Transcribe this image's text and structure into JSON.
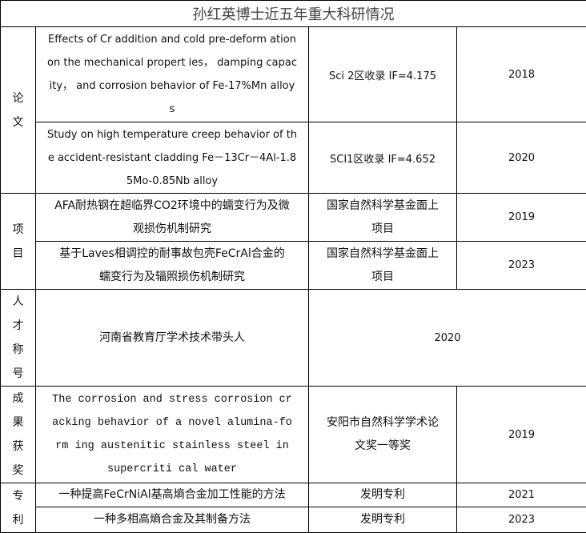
{
  "title": "孙红英博士近五年重大科研情况",
  "sections": {
    "papers": {
      "label": [
        "论",
        "文"
      ],
      "rows": [
        {
          "title_lines": [
            "Effects of Cr addition and cold pre-deform ation",
            "on the mechanical propert ies，  damping capac",
            "ity，  and corrosion behavior of Fe-17%Mn alloy",
            "s"
          ],
          "level": "Sci 2区收录  IF=4.175",
          "year": "2018"
        },
        {
          "title_lines": [
            "Study on high temperature creep behavior of th",
            "e accident-resistant cladding Fe－13Cr－4Al-1.8",
            "5Mo-0.85Nb alloy"
          ],
          "level": "SCI1区收录  IF=4.652",
          "year": "2020"
        }
      ]
    },
    "projects": {
      "label": [
        "项",
        "目"
      ],
      "rows": [
        {
          "title_lines": [
            "AFA耐热钢在超临界CO2环境中的蠕变行为及微",
            "观损伤机制研究"
          ],
          "level_lines": [
            "国家自然科学基金面上",
            "项目"
          ],
          "year": "2019"
        },
        {
          "title_lines": [
            "基于Laves相调控的耐事故包壳FeCrAl合金的",
            "蠕变行为及辐照损伤机制研究"
          ],
          "level_lines": [
            "国家自然科学基金面上",
            "项目"
          ],
          "year": "2023"
        }
      ]
    },
    "talent": {
      "label": [
        "人",
        "才",
        "称",
        "号"
      ],
      "title": "河南省教育厅学术技术带头人",
      "year": "2020"
    },
    "awards": {
      "label": [
        "成",
        "果",
        "获",
        "奖"
      ],
      "title_lines": [
        "The corrosion and stress corrosion cr",
        "acking behavior of a novel alumina-fo",
        "rm ing austenitic stainless steel in",
        "supercriti cal water"
      ],
      "level_lines": [
        "安阳市自然科学学术论",
        "文奖一等奖"
      ],
      "year": "2019"
    },
    "patents": {
      "label": [
        "专",
        "利"
      ],
      "rows": [
        {
          "title": "一种提高FeCrNiAl基高熵合金加工性能的方法",
          "type": "发明专利",
          "year": "2021"
        },
        {
          "title": "一种多相高熵合金及其制备方法",
          "type": "发明专利",
          "year": "2023"
        }
      ]
    }
  }
}
